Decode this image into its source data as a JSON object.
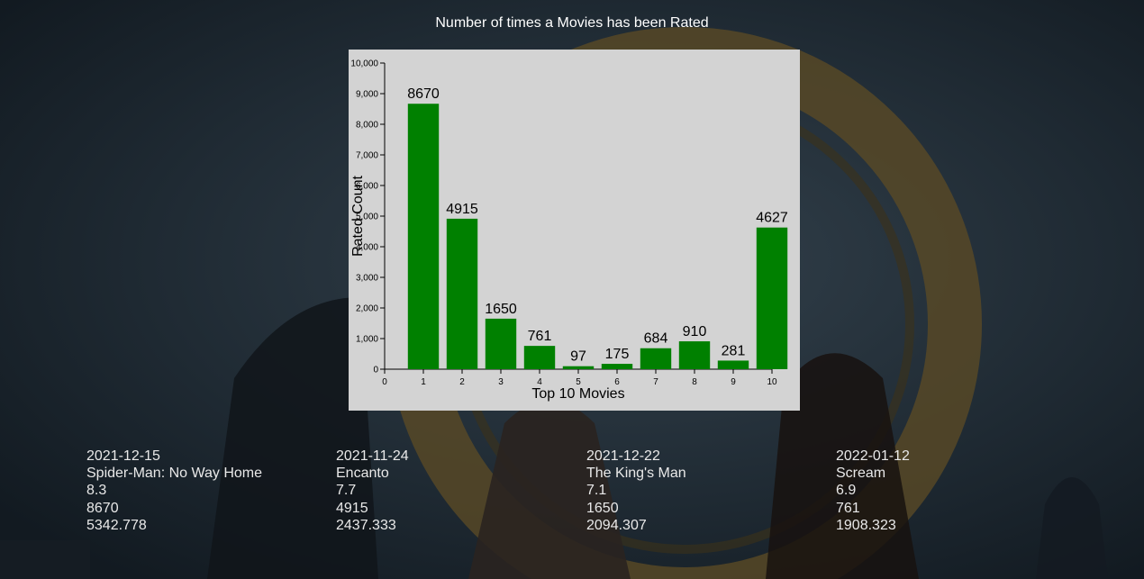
{
  "page": {
    "title": "Number of times a Movies has been Rated"
  },
  "chart_data": {
    "type": "bar",
    "title": "",
    "xlabel": "Top 10 Movies",
    "ylabel": "Rated Count",
    "categories": [
      "1",
      "2",
      "3",
      "4",
      "5",
      "6",
      "7",
      "8",
      "9",
      "10"
    ],
    "values": [
      8670,
      4915,
      1650,
      761,
      97,
      175,
      684,
      910,
      281,
      4627
    ],
    "data_labels": [
      "8670",
      "4915",
      "1650",
      "761",
      "97",
      "175",
      "684",
      "910",
      "281",
      "4627"
    ],
    "ylim": [
      0,
      10000
    ],
    "yticks": [
      0,
      1000,
      2000,
      3000,
      4000,
      5000,
      6000,
      7000,
      8000,
      9000,
      10000
    ],
    "ytick_labels": [
      "0",
      "1,000",
      "2,000",
      "3,000",
      "4,000",
      "5,000",
      "6,000",
      "7,000",
      "8,000",
      "9,000",
      "10,000"
    ],
    "xlim": [
      0,
      10
    ],
    "xticks": [
      0,
      1,
      2,
      3,
      4,
      5,
      6,
      7,
      8,
      9,
      10
    ],
    "xtick_labels": [
      "0",
      "1",
      "2",
      "3",
      "4",
      "5",
      "6",
      "7",
      "8",
      "9",
      "10"
    ],
    "bar_color": "#008000",
    "background_color": "#d3d3d3",
    "grid": false,
    "legend": "none"
  },
  "movies": [
    {
      "date": "2021-12-15",
      "title": "Spider-Man: No Way Home",
      "rating": "8.3",
      "count": "8670",
      "popularity": "5342.778"
    },
    {
      "date": "2021-11-24",
      "title": "Encanto",
      "rating": "7.7",
      "count": "4915",
      "popularity": "2437.333"
    },
    {
      "date": "2021-12-22",
      "title": "The King's Man",
      "rating": "7.1",
      "count": "1650",
      "popularity": "2094.307"
    },
    {
      "date": "2022-01-12",
      "title": "Scream",
      "rating": "6.9",
      "count": "761",
      "popularity": "1908.323"
    }
  ]
}
